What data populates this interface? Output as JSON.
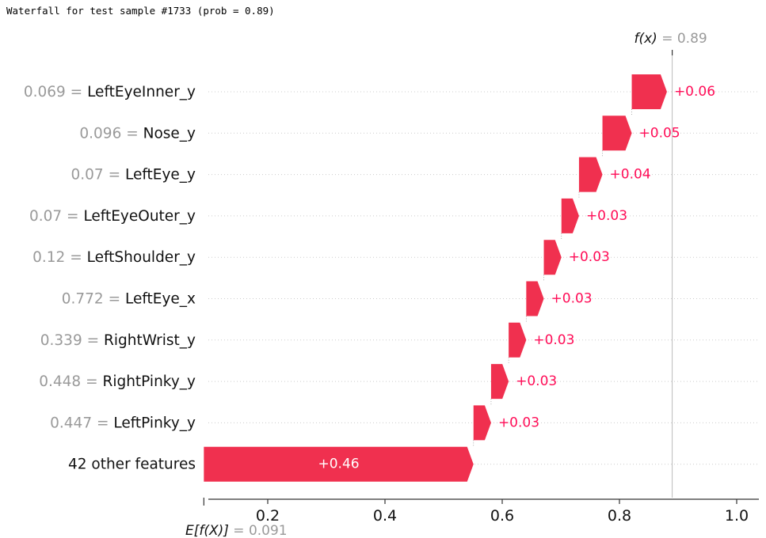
{
  "caption": "Waterfall for test sample #1733 (prob = 0.89)",
  "chart_data": {
    "type": "waterfall",
    "base_value": 0.091,
    "base_label": "E[f(X)]",
    "base_value_text": "0.091",
    "output_value": 0.89,
    "output_label": "f(x)",
    "output_value_text": "0.89",
    "xlim": [
      0.09,
      1.02
    ],
    "xticks": [
      0.2,
      0.4,
      0.6,
      0.8,
      1.0
    ],
    "xtick_labels": [
      "0.2",
      "0.4",
      "0.6",
      "0.8",
      "1.0"
    ],
    "positive_color": "#ff0d57",
    "bar_color": "#f0304f",
    "features": [
      {
        "value": "0.069",
        "name": "LeftEyeInner_y",
        "contribution": 0.06,
        "label": "+0.06"
      },
      {
        "value": "0.096",
        "name": "Nose_y",
        "contribution": 0.05,
        "label": "+0.05"
      },
      {
        "value": "0.07",
        "name": "LeftEye_y",
        "contribution": 0.04,
        "label": "+0.04"
      },
      {
        "value": "0.07",
        "name": "LeftEyeOuter_y",
        "contribution": 0.03,
        "label": "+0.03"
      },
      {
        "value": "0.12",
        "name": "LeftShoulder_y",
        "contribution": 0.03,
        "label": "+0.03"
      },
      {
        "value": "0.772",
        "name": "LeftEye_x",
        "contribution": 0.03,
        "label": "+0.03"
      },
      {
        "value": "0.339",
        "name": "RightWrist_y",
        "contribution": 0.03,
        "label": "+0.03"
      },
      {
        "value": "0.448",
        "name": "RightPinky_y",
        "contribution": 0.03,
        "label": "+0.03"
      },
      {
        "value": "0.447",
        "name": "LeftPinky_y",
        "contribution": 0.03,
        "label": "+0.03"
      },
      {
        "value": "",
        "name": "42 other features",
        "contribution": 0.46,
        "label": "+0.46"
      }
    ]
  }
}
